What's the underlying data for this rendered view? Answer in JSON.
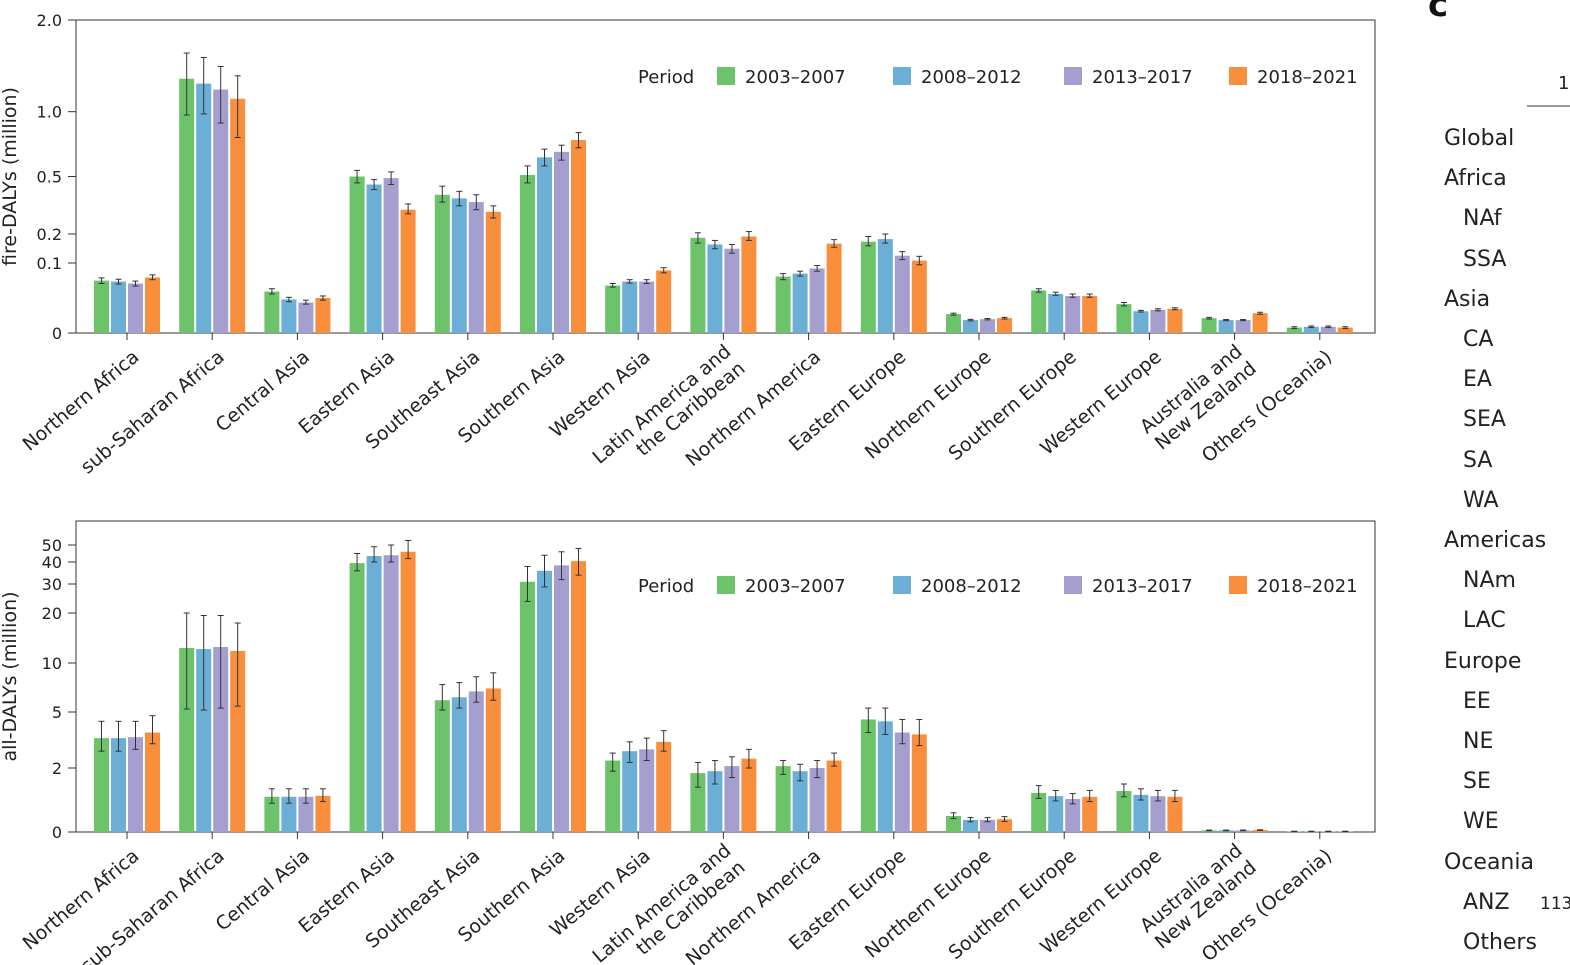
{
  "colors": {
    "2003-2007": "#6cc36a",
    "2008-2012": "#6baed6",
    "2013-2017": "#a59fd0",
    "2018-2021": "#f98e3d"
  },
  "chart_data": [
    {
      "type": "bar",
      "ylabel": "fire-DALYs (million)",
      "yscale": "sqrt",
      "ylim": [
        0,
        2.0
      ],
      "yticks": [
        0,
        0.1,
        0.2,
        0.5,
        1.0,
        2.0
      ],
      "ytick_labels": [
        "0",
        "0.1",
        "0.2",
        "0.5",
        "1.0",
        "2.0"
      ],
      "legend": {
        "title": "Period",
        "position": "top-right"
      },
      "categories": [
        "Northern Africa",
        "sub-Saharan Africa",
        "Central Asia",
        "Eastern Asia",
        "Southeast Asia",
        "Southern Asia",
        "Western Asia",
        "Latin America and\nthe Caribbean",
        "Northern America",
        "Eastern Europe",
        "Northern Europe",
        "Southern Europe",
        "Western Europe",
        "Australia and\nNew Zealand",
        "Others (Oceania)"
      ],
      "series": [
        {
          "name": "2003-2007",
          "values": [
            0.056,
            1.32,
            0.035,
            0.5,
            0.39,
            0.51,
            0.046,
            0.185,
            0.065,
            0.17,
            0.0073,
            0.037,
            0.017,
            0.0045,
            0.0006
          ],
          "ci": [
            [
              0.05,
              0.062
            ],
            [
              0.97,
              1.6
            ],
            [
              0.031,
              0.04
            ],
            [
              0.46,
              0.54
            ],
            [
              0.35,
              0.44
            ],
            [
              0.46,
              0.57
            ],
            [
              0.043,
              0.05
            ],
            [
              0.165,
              0.205
            ],
            [
              0.058,
              0.072
            ],
            [
              0.155,
              0.19
            ],
            [
              0.0065,
              0.008
            ],
            [
              0.034,
              0.04
            ],
            [
              0.015,
              0.019
            ],
            [
              0.004,
              0.005
            ],
            [
              0.0004,
              0.0008
            ]
          ]
        },
        {
          "name": "2008-2012",
          "values": [
            0.054,
            1.27,
            0.023,
            0.45,
            0.37,
            0.63,
            0.054,
            0.16,
            0.072,
            0.18,
            0.0034,
            0.031,
            0.0097,
            0.0034,
            0.0008
          ],
          "ci": [
            [
              0.049,
              0.059
            ],
            [
              0.98,
              1.55
            ],
            [
              0.02,
              0.026
            ],
            [
              0.42,
              0.48
            ],
            [
              0.33,
              0.41
            ],
            [
              0.57,
              0.69
            ],
            [
              0.051,
              0.058
            ],
            [
              0.145,
              0.175
            ],
            [
              0.066,
              0.078
            ],
            [
              0.165,
              0.2
            ],
            [
              0.003,
              0.0038
            ],
            [
              0.029,
              0.034
            ],
            [
              0.009,
              0.0105
            ],
            [
              0.0031,
              0.0037
            ],
            [
              0.0006,
              0.001
            ]
          ]
        },
        {
          "name": "2013-2017",
          "values": [
            0.05,
            1.21,
            0.019,
            0.49,
            0.35,
            0.67,
            0.054,
            0.145,
            0.085,
            0.122,
            0.0039,
            0.028,
            0.011,
            0.0034,
            0.0008
          ],
          "ci": [
            [
              0.045,
              0.055
            ],
            [
              0.9,
              1.45
            ],
            [
              0.017,
              0.022
            ],
            [
              0.45,
              0.53
            ],
            [
              0.31,
              0.39
            ],
            [
              0.61,
              0.72
            ],
            [
              0.05,
              0.058
            ],
            [
              0.13,
              0.16
            ],
            [
              0.078,
              0.093
            ],
            [
              0.11,
              0.135
            ],
            [
              0.0035,
              0.0043
            ],
            [
              0.026,
              0.031
            ],
            [
              0.01,
              0.012
            ],
            [
              0.0031,
              0.0037
            ],
            [
              0.0006,
              0.001
            ]
          ]
        },
        {
          "name": "2018-2021",
          "values": [
            0.063,
            1.12,
            0.025,
            0.31,
            0.3,
            0.76,
            0.08,
            0.19,
            0.163,
            0.107,
            0.0045,
            0.028,
            0.012,
            0.008,
            0.0006
          ],
          "ci": [
            [
              0.058,
              0.069
            ],
            [
              0.78,
              1.35
            ],
            [
              0.022,
              0.028
            ],
            [
              0.29,
              0.34
            ],
            [
              0.27,
              0.33
            ],
            [
              0.7,
              0.82
            ],
            [
              0.074,
              0.087
            ],
            [
              0.175,
              0.21
            ],
            [
              0.15,
              0.178
            ],
            [
              0.095,
              0.12
            ],
            [
              0.004,
              0.005
            ],
            [
              0.026,
              0.031
            ],
            [
              0.011,
              0.013
            ],
            [
              0.0072,
              0.0088
            ],
            [
              0.0004,
              0.0008
            ]
          ]
        }
      ]
    },
    {
      "type": "bar",
      "ylabel": "all-DALYs (million)",
      "yscale": "nonlinear (compressed)",
      "ylim": [
        0,
        60
      ],
      "yticks": [
        0,
        2,
        5,
        10,
        20,
        30,
        40,
        50
      ],
      "ytick_labels": [
        "0",
        "2",
        "5",
        "10",
        "20",
        "30",
        "40",
        "50"
      ],
      "legend": {
        "title": "Period",
        "position": "top-right"
      },
      "categories": [
        "Northern Africa",
        "sub-Saharan Africa",
        "Central Asia",
        "Eastern Asia",
        "Southeast Asia",
        "Southern Asia",
        "Western Asia",
        "Latin America and\nthe Caribbean",
        "Northern America",
        "Eastern Europe",
        "Northern Europe",
        "Southern Europe",
        "Western Europe",
        "Australia and\nNew Zealand",
        "Others (Oceania)"
      ],
      "series": [
        {
          "name": "2003-2007",
          "values": [
            3.6,
            13.0,
            1.1,
            39.5,
            6.2,
            31,
            2.4,
            1.84,
            2.1,
            4.6,
            0.5,
            1.22,
            1.28,
            0.05,
            0.02
          ],
          "ci": [
            [
              2.9,
              4.5
            ],
            [
              5.3,
              20
            ],
            [
              0.9,
              1.35
            ],
            [
              36,
              45
            ],
            [
              5.2,
              7.8
            ],
            [
              24,
              38
            ],
            [
              1.9,
              2.8
            ],
            [
              1.4,
              2.3
            ],
            [
              1.8,
              2.4
            ],
            [
              3.9,
              5.4
            ],
            [
              0.42,
              0.6
            ],
            [
              1.05,
              1.45
            ],
            [
              1.1,
              1.5
            ],
            [
              0.04,
              0.06
            ],
            [
              0.015,
              0.025
            ]
          ]
        },
        {
          "name": "2008-2012",
          "values": [
            3.6,
            12.8,
            1.1,
            43.5,
            6.5,
            36,
            2.9,
            1.9,
            1.9,
            4.5,
            0.38,
            1.12,
            1.16,
            0.05,
            0.02
          ],
          "ci": [
            [
              2.9,
              4.5
            ],
            [
              5.2,
              19.5
            ],
            [
              0.9,
              1.35
            ],
            [
              40,
              49
            ],
            [
              5.4,
              8.0
            ],
            [
              29,
              44
            ],
            [
              2.3,
              3.4
            ],
            [
              1.5,
              2.4
            ],
            [
              1.6,
              2.2
            ],
            [
              3.8,
              5.4
            ],
            [
              0.32,
              0.45
            ],
            [
              0.97,
              1.3
            ],
            [
              1.0,
              1.35
            ],
            [
              0.04,
              0.06
            ],
            [
              0.015,
              0.025
            ]
          ]
        },
        {
          "name": "2013-2017",
          "values": [
            3.65,
            13.2,
            1.1,
            44,
            7.1,
            38.5,
            3.0,
            2.1,
            2.0,
            3.9,
            0.38,
            1.03,
            1.12,
            0.05,
            0.02
          ],
          "ci": [
            [
              3.0,
              4.5
            ],
            [
              5.4,
              19.5
            ],
            [
              0.9,
              1.35
            ],
            [
              40,
              50
            ],
            [
              6.0,
              8.6
            ],
            [
              32,
              46
            ],
            [
              2.4,
              3.6
            ],
            [
              1.7,
              2.6
            ],
            [
              1.7,
              2.4
            ],
            [
              3.3,
              4.6
            ],
            [
              0.32,
              0.45
            ],
            [
              0.88,
              1.2
            ],
            [
              0.97,
              1.3
            ],
            [
              0.04,
              0.06
            ],
            [
              0.015,
              0.025
            ]
          ]
        },
        {
          "name": "2018-2021",
          "values": [
            3.9,
            12.4,
            1.13,
            46,
            7.4,
            40.5,
            3.4,
            2.5,
            2.4,
            3.8,
            0.4,
            1.1,
            1.1,
            0.06,
            0.02
          ],
          "ci": [
            [
              3.3,
              4.8
            ],
            [
              5.6,
              18
            ],
            [
              0.95,
              1.35
            ],
            [
              42,
              53
            ],
            [
              6.2,
              9.0
            ],
            [
              34,
              48
            ],
            [
              2.9,
              4.0
            ],
            [
              2.0,
              3.0
            ],
            [
              2.1,
              2.8
            ],
            [
              3.2,
              4.6
            ],
            [
              0.33,
              0.48
            ],
            [
              0.95,
              1.3
            ],
            [
              0.95,
              1.3
            ],
            [
              0.05,
              0.07
            ],
            [
              0.015,
              0.025
            ]
          ]
        }
      ]
    }
  ],
  "panel_c": {
    "label": "c",
    "header_fragment": "1",
    "rows": [
      {
        "label": "Global",
        "indent": false
      },
      {
        "label": "Africa",
        "indent": false
      },
      {
        "label": "NAf",
        "indent": true
      },
      {
        "label": "SSA",
        "indent": true
      },
      {
        "label": "Asia",
        "indent": false
      },
      {
        "label": "CA",
        "indent": true
      },
      {
        "label": "EA",
        "indent": true
      },
      {
        "label": "SEA",
        "indent": true
      },
      {
        "label": "SA",
        "indent": true
      },
      {
        "label": "WA",
        "indent": true
      },
      {
        "label": "Americas",
        "indent": false
      },
      {
        "label": "NAm",
        "indent": true
      },
      {
        "label": "LAC",
        "indent": true
      },
      {
        "label": "Europe",
        "indent": false
      },
      {
        "label": "EE",
        "indent": true
      },
      {
        "label": "NE",
        "indent": true
      },
      {
        "label": "SE",
        "indent": true
      },
      {
        "label": "WE",
        "indent": true
      },
      {
        "label": "Oceania",
        "indent": false
      },
      {
        "label": "ANZ",
        "indent": true,
        "value": "113"
      },
      {
        "label": "Others",
        "indent": true
      }
    ]
  }
}
